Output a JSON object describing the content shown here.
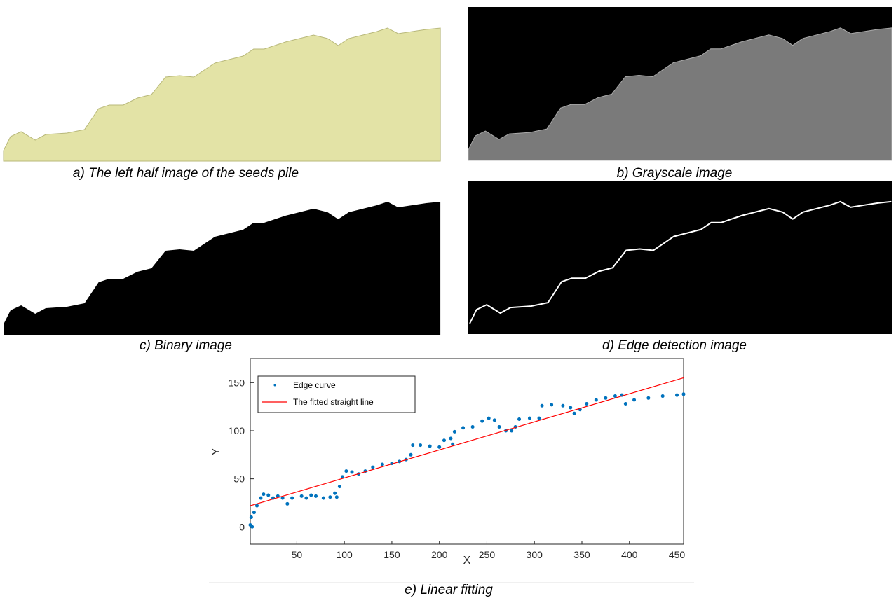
{
  "panels": [
    {
      "caption": "a) The left half image of the seeds pile"
    },
    {
      "caption": "b) Grayscale image"
    },
    {
      "caption": "c) Binary image"
    },
    {
      "caption": "d) Edge detection image"
    }
  ],
  "chart_data": {
    "type": "scatter",
    "caption": "e) Linear fitting",
    "x_label": "X",
    "y_label": "Y",
    "xlim": [
      1,
      457
    ],
    "ylim": [
      -18,
      175
    ],
    "xticks": [
      50,
      100,
      150,
      200,
      250,
      300,
      350,
      400,
      450
    ],
    "yticks": [
      0,
      50,
      100,
      150
    ],
    "legend": "upper-left",
    "series": [
      {
        "name": "Edge curve",
        "type": "scatter",
        "color": "#0072bd",
        "x": [
          1,
          3,
          2,
          5,
          8,
          12,
          15,
          20,
          25,
          30,
          35,
          40,
          45,
          55,
          60,
          65,
          70,
          78,
          85,
          90,
          92,
          95,
          98,
          102,
          108,
          115,
          122,
          130,
          140,
          150,
          158,
          165,
          170,
          172,
          180,
          190,
          200,
          205,
          212,
          214,
          216,
          225,
          235,
          245,
          252,
          258,
          263,
          270,
          276,
          280,
          284,
          295,
          305,
          308,
          318,
          330,
          338,
          342,
          348,
          355,
          365,
          375,
          385,
          392,
          396,
          405,
          420,
          435,
          450,
          457
        ],
        "values": [
          2,
          0,
          10,
          15,
          22,
          30,
          34,
          33,
          30,
          32,
          30,
          24,
          30,
          32,
          30,
          33,
          32,
          30,
          31,
          35,
          31,
          42,
          52,
          58,
          57,
          55,
          58,
          62,
          65,
          66,
          68,
          70,
          75,
          85,
          85,
          84,
          83,
          90,
          92,
          86,
          99,
          103,
          104,
          110,
          113,
          111,
          104,
          100,
          100,
          104,
          112,
          113,
          113,
          126,
          127,
          126,
          124,
          118,
          122,
          128,
          132,
          134,
          136,
          137,
          128,
          132,
          134,
          136,
          137,
          138
        ]
      },
      {
        "name": "The fitted straight line",
        "type": "line",
        "color": "#ff0000",
        "x": [
          1,
          457
        ],
        "values": [
          22,
          155
        ]
      }
    ]
  }
}
